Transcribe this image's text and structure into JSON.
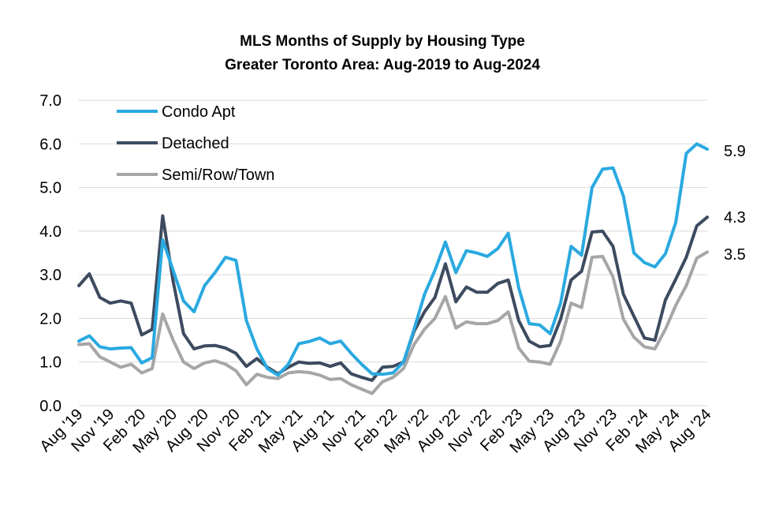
{
  "chart_data": {
    "type": "line",
    "title": "MLS Months of Supply by Housing Type",
    "subtitle": "Greater Toronto Area: Aug-2019 to Aug-2024",
    "xlabel": "",
    "ylabel": "",
    "ylim": [
      0,
      7
    ],
    "yticks": [
      "0.0",
      "1.0",
      "2.0",
      "3.0",
      "4.0",
      "5.0",
      "6.0",
      "7.0"
    ],
    "grid": true,
    "legend_position": "top-left",
    "x": [
      "Aug '19",
      "Sep '19",
      "Oct '19",
      "Nov '19",
      "Dec '19",
      "Jan '20",
      "Feb '20",
      "Mar '20",
      "Apr '20",
      "May '20",
      "Jun '20",
      "Jul '20",
      "Aug '20",
      "Sep '20",
      "Oct '20",
      "Nov '20",
      "Dec '20",
      "Jan '21",
      "Feb '21",
      "Mar '21",
      "Apr '21",
      "May '21",
      "Jun '21",
      "Jul '21",
      "Aug '21",
      "Sep '21",
      "Oct '21",
      "Nov '21",
      "Dec '21",
      "Jan '22",
      "Feb '22",
      "Mar '22",
      "Apr '22",
      "May '22",
      "Jun '22",
      "Jul '22",
      "Aug '22",
      "Sep '22",
      "Oct '22",
      "Nov '22",
      "Dec '22",
      "Jan '23",
      "Feb '23",
      "Mar '23",
      "Apr '23",
      "May '23",
      "Jun '23",
      "Jul '23",
      "Aug '23",
      "Sep '23",
      "Oct '23",
      "Nov '23",
      "Dec '23",
      "Jan '24",
      "Feb '24",
      "Mar '24",
      "Apr '24",
      "May '24",
      "Jun '24",
      "Jul '24",
      "Aug '24"
    ],
    "x_tick_labels": [
      "Aug '19",
      "Nov '19",
      "Feb '20",
      "May '20",
      "Aug '20",
      "Nov '20",
      "Feb '21",
      "May '21",
      "Aug '21",
      "Nov '21",
      "Feb '22",
      "May '22",
      "Aug '22",
      "Nov '22",
      "Feb '23",
      "May '23",
      "Aug '23",
      "Nov '23",
      "Feb '24",
      "May '24",
      "Aug '24"
    ],
    "series": [
      {
        "name": "Condo Apt",
        "color": "#2aa9e0",
        "end_label": "5.9",
        "values": [
          1.48,
          1.6,
          1.35,
          1.3,
          1.32,
          1.33,
          0.98,
          1.1,
          3.8,
          3.1,
          2.4,
          2.15,
          2.75,
          3.05,
          3.4,
          3.33,
          1.95,
          1.3,
          0.85,
          0.7,
          0.95,
          1.42,
          1.47,
          1.55,
          1.42,
          1.48,
          1.2,
          0.95,
          0.73,
          0.72,
          0.75,
          1.0,
          1.75,
          2.55,
          3.1,
          3.75,
          3.05,
          3.55,
          3.5,
          3.42,
          3.6,
          3.95,
          2.7,
          1.88,
          1.85,
          1.65,
          2.35,
          3.65,
          3.45,
          5.0,
          5.42,
          5.45,
          4.8,
          3.5,
          3.28,
          3.18,
          3.48,
          4.2,
          5.78,
          6.0,
          5.88
        ]
      },
      {
        "name": "Detached",
        "color": "#3d4b5f",
        "end_label": "4.3",
        "values": [
          2.75,
          3.02,
          2.48,
          2.35,
          2.4,
          2.35,
          1.62,
          1.75,
          4.35,
          2.85,
          1.65,
          1.3,
          1.37,
          1.38,
          1.32,
          1.2,
          0.9,
          1.08,
          0.88,
          0.73,
          0.88,
          1.0,
          0.97,
          0.98,
          0.9,
          0.98,
          0.73,
          0.65,
          0.58,
          0.88,
          0.9,
          1.0,
          1.7,
          2.15,
          2.48,
          3.25,
          2.38,
          2.72,
          2.6,
          2.6,
          2.8,
          2.88,
          1.95,
          1.48,
          1.35,
          1.38,
          1.98,
          2.88,
          3.08,
          3.98,
          4.0,
          3.65,
          2.55,
          2.05,
          1.55,
          1.5,
          2.42,
          2.9,
          3.4,
          4.12,
          4.32
        ]
      },
      {
        "name": "Semi/Row/Town",
        "color": "#a6a6a6",
        "end_label": "3.5",
        "values": [
          1.4,
          1.42,
          1.12,
          1.0,
          0.88,
          0.95,
          0.75,
          0.85,
          2.1,
          1.5,
          1.0,
          0.85,
          0.98,
          1.03,
          0.95,
          0.8,
          0.48,
          0.72,
          0.65,
          0.62,
          0.75,
          0.78,
          0.76,
          0.7,
          0.6,
          0.62,
          0.48,
          0.38,
          0.28,
          0.55,
          0.65,
          0.85,
          1.4,
          1.75,
          2.0,
          2.5,
          1.78,
          1.92,
          1.88,
          1.88,
          1.95,
          2.15,
          1.32,
          1.02,
          1.0,
          0.95,
          1.48,
          2.35,
          2.25,
          3.4,
          3.42,
          2.95,
          1.98,
          1.57,
          1.35,
          1.3,
          1.75,
          2.3,
          2.75,
          3.38,
          3.52
        ]
      }
    ]
  }
}
